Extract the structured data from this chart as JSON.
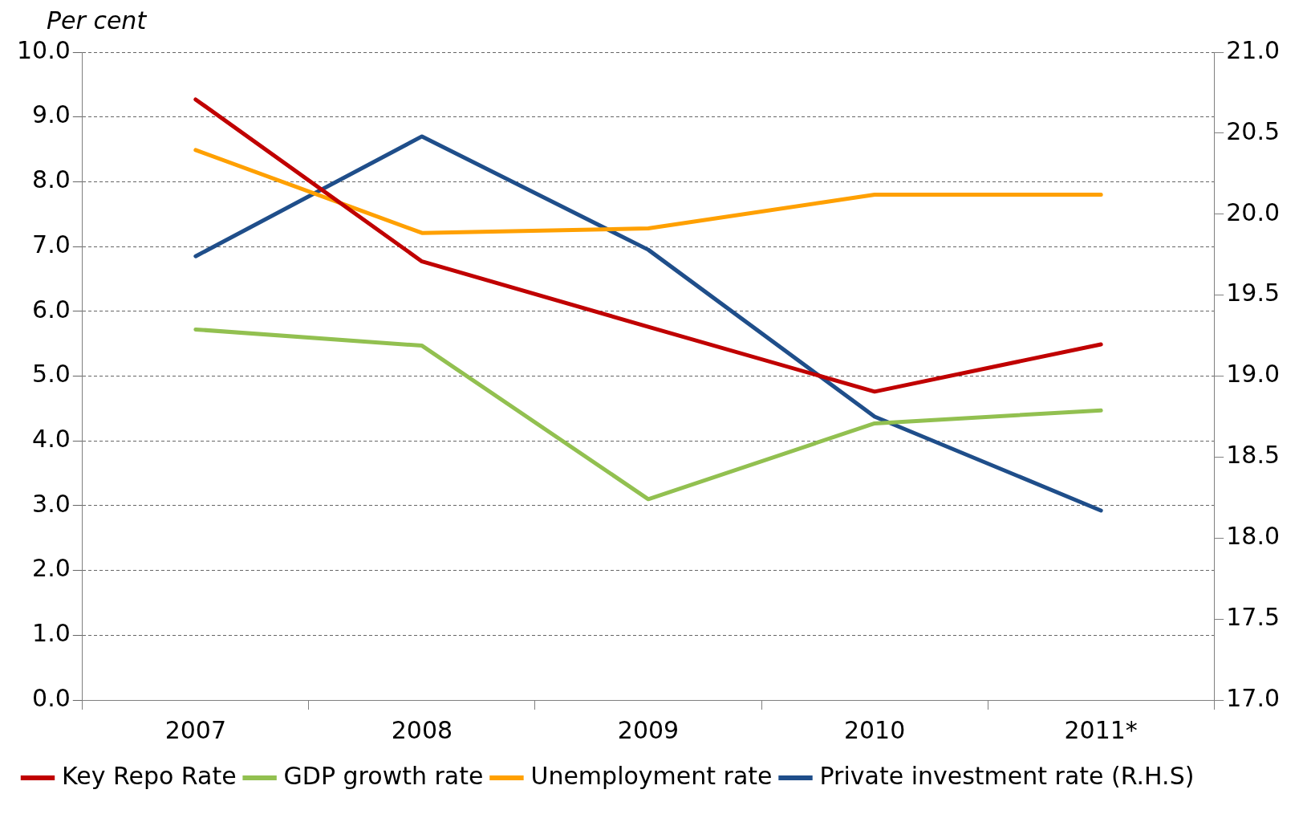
{
  "chart_data": {
    "type": "line",
    "ylabel": "Per cent",
    "categories": [
      "2007",
      "2008",
      "2009",
      "2010",
      "2011*"
    ],
    "series": [
      {
        "name": "Key Repo Rate",
        "color": "#c00000",
        "values": [
          9.27,
          6.77,
          5.76,
          4.76,
          5.49
        ]
      },
      {
        "name": "GDP growth rate",
        "color": "#92c050",
        "values": [
          5.72,
          5.47,
          3.1,
          4.27,
          4.47
        ]
      },
      {
        "name": "Unemployment rate",
        "color": "#ffa000",
        "values": [
          8.49,
          7.21,
          7.28,
          7.8,
          7.8
        ]
      },
      {
        "name": "Private investment rate (R.H.S)",
        "color": "#1f4e8a",
        "axis": "y2",
        "values": [
          19.74,
          20.48,
          19.78,
          18.75,
          18.17
        ]
      }
    ],
    "ylim": [
      0,
      10
    ],
    "yticks": [
      {
        "value": 0,
        "label": "0.0"
      },
      {
        "value": 1,
        "label": "1.0"
      },
      {
        "value": 2,
        "label": "2.0"
      },
      {
        "value": 3,
        "label": "3.0"
      },
      {
        "value": 4,
        "label": "4.0"
      },
      {
        "value": 5,
        "label": "5.0"
      },
      {
        "value": 6,
        "label": "6.0"
      },
      {
        "value": 7,
        "label": "7.0"
      },
      {
        "value": 8,
        "label": "8.0"
      },
      {
        "value": 9,
        "label": "9.0"
      },
      {
        "value": 10,
        "label": "10.0"
      }
    ],
    "y2lim": [
      17,
      21
    ],
    "y2ticks": [
      {
        "value": 17,
        "label": "17.0"
      },
      {
        "value": 17.5,
        "label": "17.5"
      },
      {
        "value": 18,
        "label": "18.0"
      },
      {
        "value": 18.5,
        "label": "18.5"
      },
      {
        "value": 19,
        "label": "19.0"
      },
      {
        "value": 19.5,
        "label": "19.5"
      },
      {
        "value": 20,
        "label": "20.0"
      },
      {
        "value": 20.5,
        "label": "20.5"
      },
      {
        "value": 21,
        "label": "21.0"
      }
    ],
    "grid": "y",
    "legend": "bottom",
    "marker": "none",
    "line_style": "solid"
  }
}
